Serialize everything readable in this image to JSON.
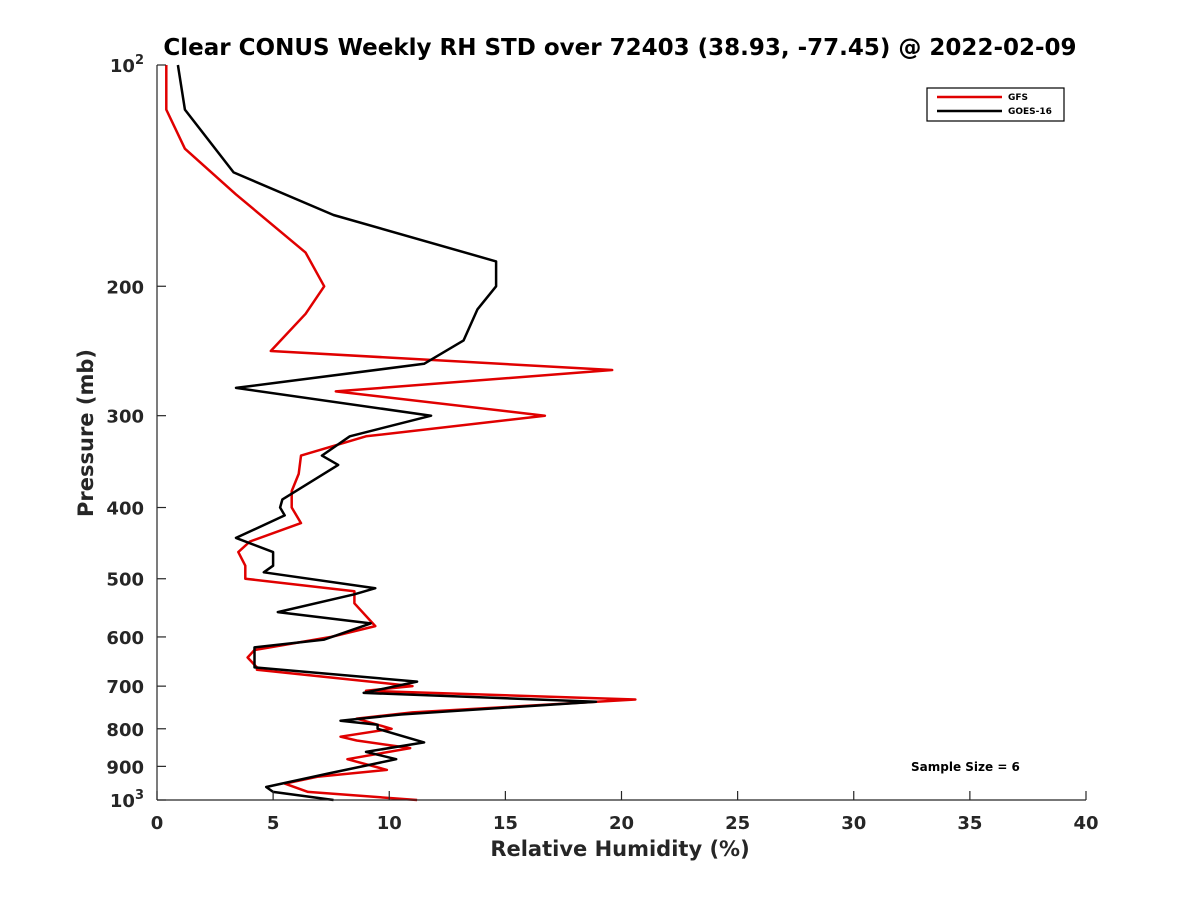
{
  "chart_data": {
    "type": "line",
    "title": "Clear CONUS Weekly RH STD over 72403 (38.93, -77.45) @ 2022-02-09",
    "xlabel": "Relative Humidity (%)",
    "ylabel": "Pressure (mb)",
    "xlim": [
      0,
      40
    ],
    "ylim": [
      100,
      1000
    ],
    "y_scale": "log",
    "y_reversed": true,
    "grid": false,
    "legend_position": "top-right",
    "x_ticks": [
      "0",
      "5",
      "10",
      "15",
      "20",
      "25",
      "30",
      "35",
      "40"
    ],
    "y_ticks": [
      {
        "value": 100,
        "label": "10",
        "exp": "2"
      },
      {
        "value": 200,
        "label": "200",
        "exp": ""
      },
      {
        "value": 300,
        "label": "300",
        "exp": ""
      },
      {
        "value": 400,
        "label": "400",
        "exp": ""
      },
      {
        "value": 500,
        "label": "500",
        "exp": ""
      },
      {
        "value": 600,
        "label": "600",
        "exp": ""
      },
      {
        "value": 700,
        "label": "700",
        "exp": ""
      },
      {
        "value": 800,
        "label": "800",
        "exp": ""
      },
      {
        "value": 900,
        "label": "900",
        "exp": ""
      },
      {
        "value": 1000,
        "label": "10",
        "exp": "3"
      }
    ],
    "annotation": "Sample Size = 6",
    "series": [
      {
        "name": "GFS",
        "color": "#e00000",
        "points": [
          [
            0.4,
            100
          ],
          [
            0.4,
            115
          ],
          [
            1.2,
            130
          ],
          [
            3.4,
            150
          ],
          [
            6.4,
            180
          ],
          [
            7.2,
            200
          ],
          [
            6.4,
            218
          ],
          [
            4.9,
            245
          ],
          [
            19.6,
            260
          ],
          [
            7.7,
            278
          ],
          [
            16.7,
            300
          ],
          [
            9.0,
            320
          ],
          [
            6.2,
            340
          ],
          [
            6.1,
            360
          ],
          [
            5.8,
            380
          ],
          [
            5.8,
            400
          ],
          [
            6.2,
            420
          ],
          [
            4.0,
            445
          ],
          [
            3.5,
            460
          ],
          [
            3.8,
            480
          ],
          [
            3.8,
            500
          ],
          [
            8.5,
            520
          ],
          [
            8.5,
            540
          ],
          [
            9.4,
            580
          ],
          [
            7.5,
            600
          ],
          [
            4.2,
            625
          ],
          [
            3.9,
            640
          ],
          [
            4.3,
            660
          ],
          [
            4.3,
            665
          ],
          [
            11.0,
            700
          ],
          [
            9.0,
            710
          ],
          [
            20.6,
            730
          ],
          [
            11.0,
            760
          ],
          [
            8.6,
            775
          ],
          [
            10.1,
            800
          ],
          [
            7.9,
            820
          ],
          [
            8.6,
            830
          ],
          [
            10.9,
            850
          ],
          [
            8.2,
            880
          ],
          [
            9.9,
            910
          ],
          [
            6.9,
            930
          ],
          [
            5.5,
            950
          ],
          [
            6.5,
            975
          ],
          [
            11.2,
            1000
          ]
        ]
      },
      {
        "name": "GOES-16",
        "color": "#000000",
        "points": [
          [
            0.9,
            100
          ],
          [
            1.2,
            115
          ],
          [
            3.3,
            140
          ],
          [
            7.6,
            160
          ],
          [
            14.6,
            185
          ],
          [
            14.6,
            200
          ],
          [
            13.8,
            215
          ],
          [
            13.2,
            237
          ],
          [
            11.5,
            255
          ],
          [
            3.4,
            275
          ],
          [
            11.8,
            300
          ],
          [
            8.3,
            320
          ],
          [
            7.1,
            340
          ],
          [
            7.8,
            350
          ],
          [
            5.4,
            390
          ],
          [
            5.3,
            400
          ],
          [
            5.5,
            410
          ],
          [
            3.4,
            440
          ],
          [
            5.0,
            460
          ],
          [
            5.0,
            480
          ],
          [
            4.6,
            490
          ],
          [
            9.4,
            515
          ],
          [
            8.5,
            525
          ],
          [
            5.2,
            555
          ],
          [
            9.2,
            575
          ],
          [
            7.2,
            605
          ],
          [
            4.2,
            620
          ],
          [
            4.2,
            660
          ],
          [
            11.2,
            690
          ],
          [
            8.9,
            715
          ],
          [
            18.9,
            735
          ],
          [
            10.5,
            765
          ],
          [
            7.9,
            780
          ],
          [
            9.5,
            790
          ],
          [
            9.5,
            800
          ],
          [
            11.5,
            835
          ],
          [
            9.0,
            860
          ],
          [
            10.3,
            880
          ],
          [
            7.4,
            920
          ],
          [
            4.7,
            960
          ],
          [
            5.0,
            975
          ],
          [
            7.6,
            1000
          ]
        ]
      }
    ]
  }
}
